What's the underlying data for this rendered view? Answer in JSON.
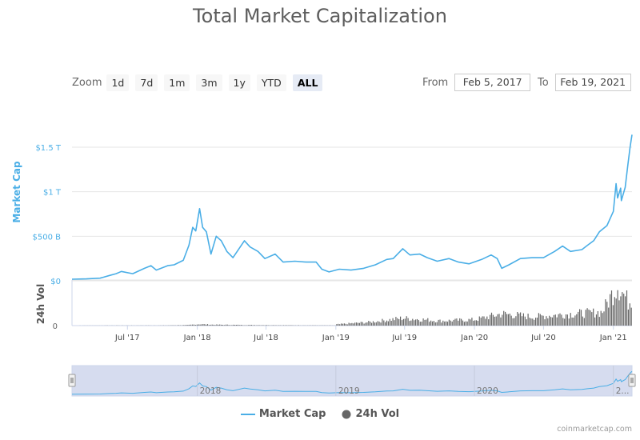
{
  "title": "Total Market Capitalization",
  "toolbar": {
    "zoom_label": "Zoom",
    "buttons": [
      "1d",
      "7d",
      "1m",
      "3m",
      "1y",
      "YTD",
      "ALL"
    ],
    "active": "ALL",
    "from_label": "From",
    "from_value": "Feb 5, 2017",
    "to_label": "To",
    "to_value": "Feb 19, 2021"
  },
  "credit": "coinmarketcap.com",
  "colors": {
    "market_cap": "#4aaee6",
    "volume": "#666666",
    "navigator_mask": "#d6dcef"
  },
  "chart_data": {
    "type": "line",
    "title": "Total Market Capitalization",
    "xlabel": "",
    "ylabel": "Market Cap",
    "y_unit": "USD",
    "ylim": [
      0,
      1.7
    ],
    "y_ticks": [
      0,
      0.5,
      1,
      1.5
    ],
    "y_tick_labels": [
      "$0",
      "$500 B",
      "$1 T",
      "$1.5 T"
    ],
    "x_range": [
      "2017-02-05",
      "2021-02-19"
    ],
    "x_ticks": [
      "2017-07-01",
      "2018-01-01",
      "2018-07-01",
      "2019-01-01",
      "2019-07-01",
      "2020-01-01",
      "2020-07-01",
      "2021-01-01"
    ],
    "x_tick_labels": [
      "Jul '17",
      "Jan '18",
      "Jul '18",
      "Jan '19",
      "Jul '19",
      "Jan '20",
      "Jul '20",
      "Jan '21"
    ],
    "grid": true,
    "legend": "bottom-center",
    "series": [
      {
        "name": "Market Cap",
        "unit": "trillion USD",
        "points": [
          [
            "2017-02-05",
            0.018
          ],
          [
            "2017-03-15",
            0.022
          ],
          [
            "2017-04-20",
            0.03
          ],
          [
            "2017-05-15",
            0.06
          ],
          [
            "2017-06-01",
            0.08
          ],
          [
            "2017-06-15",
            0.105
          ],
          [
            "2017-07-15",
            0.08
          ],
          [
            "2017-08-15",
            0.14
          ],
          [
            "2017-09-01",
            0.17
          ],
          [
            "2017-09-15",
            0.12
          ],
          [
            "2017-10-15",
            0.17
          ],
          [
            "2017-11-01",
            0.18
          ],
          [
            "2017-11-25",
            0.23
          ],
          [
            "2017-12-10",
            0.4
          ],
          [
            "2017-12-20",
            0.6
          ],
          [
            "2017-12-28",
            0.56
          ],
          [
            "2018-01-07",
            0.81
          ],
          [
            "2018-01-15",
            0.6
          ],
          [
            "2018-01-25",
            0.55
          ],
          [
            "2018-02-06",
            0.3
          ],
          [
            "2018-02-20",
            0.5
          ],
          [
            "2018-03-05",
            0.45
          ],
          [
            "2018-03-20",
            0.33
          ],
          [
            "2018-04-05",
            0.26
          ],
          [
            "2018-05-05",
            0.45
          ],
          [
            "2018-05-20",
            0.38
          ],
          [
            "2018-06-10",
            0.33
          ],
          [
            "2018-06-28",
            0.25
          ],
          [
            "2018-07-25",
            0.3
          ],
          [
            "2018-08-15",
            0.21
          ],
          [
            "2018-09-15",
            0.22
          ],
          [
            "2018-10-15",
            0.21
          ],
          [
            "2018-11-10",
            0.21
          ],
          [
            "2018-11-25",
            0.13
          ],
          [
            "2018-12-14",
            0.1
          ],
          [
            "2019-01-10",
            0.13
          ],
          [
            "2019-02-10",
            0.12
          ],
          [
            "2019-03-15",
            0.14
          ],
          [
            "2019-04-15",
            0.18
          ],
          [
            "2019-05-15",
            0.24
          ],
          [
            "2019-06-01",
            0.25
          ],
          [
            "2019-06-26",
            0.36
          ],
          [
            "2019-07-15",
            0.29
          ],
          [
            "2019-08-10",
            0.3
          ],
          [
            "2019-08-30",
            0.26
          ],
          [
            "2019-09-25",
            0.22
          ],
          [
            "2019-10-26",
            0.25
          ],
          [
            "2019-11-20",
            0.21
          ],
          [
            "2019-12-18",
            0.19
          ],
          [
            "2020-01-20",
            0.24
          ],
          [
            "2020-02-14",
            0.29
          ],
          [
            "2020-03-01",
            0.25
          ],
          [
            "2020-03-13",
            0.14
          ],
          [
            "2020-04-01",
            0.18
          ],
          [
            "2020-05-01",
            0.25
          ],
          [
            "2020-06-01",
            0.26
          ],
          [
            "2020-07-01",
            0.26
          ],
          [
            "2020-07-30",
            0.33
          ],
          [
            "2020-08-20",
            0.39
          ],
          [
            "2020-09-10",
            0.33
          ],
          [
            "2020-10-10",
            0.35
          ],
          [
            "2020-10-25",
            0.4
          ],
          [
            "2020-11-10",
            0.45
          ],
          [
            "2020-11-25",
            0.55
          ],
          [
            "2020-12-15",
            0.62
          ],
          [
            "2021-01-01",
            0.78
          ],
          [
            "2021-01-08",
            1.09
          ],
          [
            "2021-01-12",
            0.93
          ],
          [
            "2021-01-20",
            1.04
          ],
          [
            "2021-01-22",
            0.9
          ],
          [
            "2021-02-01",
            1.05
          ],
          [
            "2021-02-08",
            1.3
          ],
          [
            "2021-02-14",
            1.5
          ],
          [
            "2021-02-19",
            1.64
          ]
        ]
      },
      {
        "name": "24h Vol",
        "unit": "billion USD",
        "ylabel": "24h Vol",
        "y_tick_labels": [
          "0"
        ],
        "points": [
          [
            "2017-02-05",
            0.3
          ],
          [
            "2017-06-01",
            1.5
          ],
          [
            "2017-10-01",
            2
          ],
          [
            "2017-12-01",
            6
          ],
          [
            "2018-01-07",
            18
          ],
          [
            "2018-02-06",
            12
          ],
          [
            "2018-05-01",
            8
          ],
          [
            "2018-09-01",
            4
          ],
          [
            "2018-12-31",
            2
          ],
          [
            "2019-01-01",
            15
          ],
          [
            "2019-04-01",
            45
          ],
          [
            "2019-06-26",
            95
          ],
          [
            "2019-10-01",
            60
          ],
          [
            "2020-01-01",
            75
          ],
          [
            "2020-03-13",
            150
          ],
          [
            "2020-06-01",
            110
          ],
          [
            "2020-09-01",
            145
          ],
          [
            "2020-12-01",
            170
          ],
          [
            "2021-01-11",
            520
          ],
          [
            "2021-02-08",
            300
          ],
          [
            "2021-02-19",
            350
          ]
        ]
      }
    ],
    "navigator": {
      "x_tick_labels": [
        "2018",
        "2019",
        "2020",
        "2..."
      ],
      "x_ticks": [
        "2018-01-01",
        "2019-01-01",
        "2020-01-01",
        "2021-01-01"
      ]
    }
  }
}
